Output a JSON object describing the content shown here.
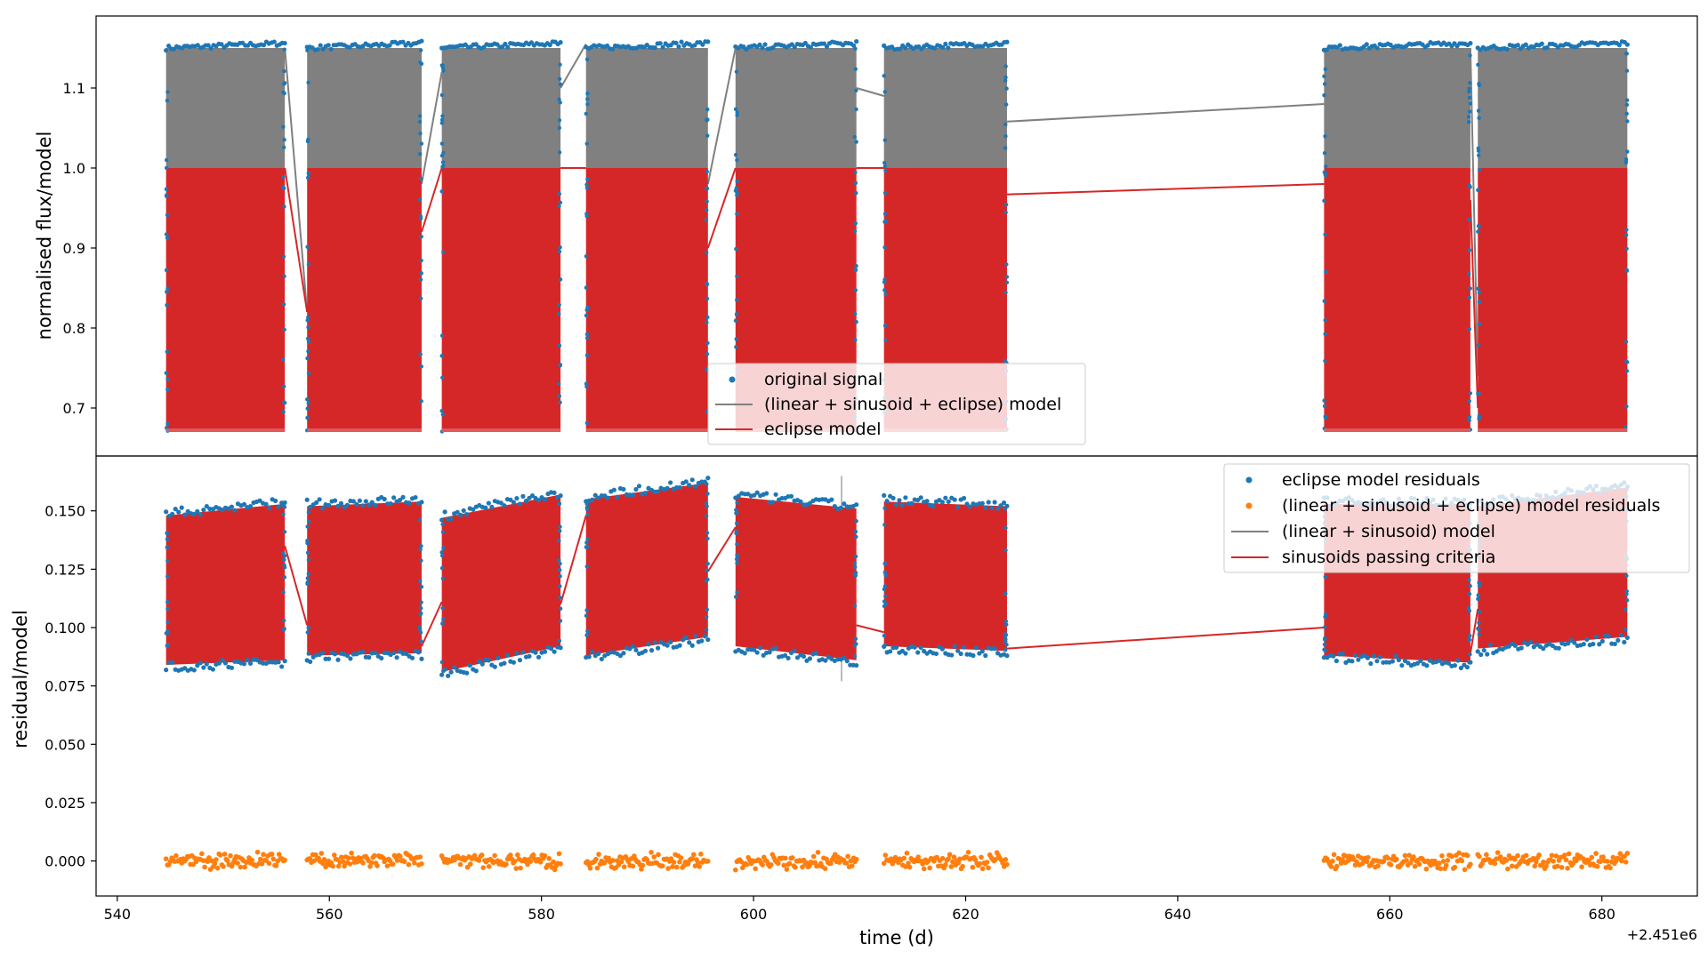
{
  "figure": {
    "x_offset_text": "+2.451e6"
  },
  "colors": {
    "blue": "#1f77b4",
    "orange": "#ff7f0e",
    "gray": "#808080",
    "red": "#d62728"
  },
  "chart_data": [
    {
      "type": "scatter",
      "ylabel": "normalised flux/model",
      "xlim": [
        538.0,
        689.0
      ],
      "ylim": [
        0.64,
        1.19
      ],
      "yticks": [
        0.7,
        0.8,
        0.9,
        1.0,
        1.1
      ],
      "ytick_labels": [
        "0.7",
        "0.8",
        "0.9",
        "1.0",
        "1.1"
      ],
      "grid": false,
      "legend_position": "lower-center",
      "segments": [
        [
          544.6,
          555.8
        ],
        [
          557.9,
          568.7
        ],
        [
          570.6,
          581.8
        ],
        [
          584.2,
          595.7
        ],
        [
          598.3,
          609.7
        ],
        [
          612.3,
          623.9
        ],
        [
          653.8,
          667.6
        ],
        [
          668.3,
          682.4
        ]
      ],
      "series": [
        {
          "name": "original signal",
          "kind": "scatter",
          "color": "blue",
          "y_top": 1.15,
          "y_trend": 0.006,
          "y_bottom": 0.67
        },
        {
          "name": "(linear + sinusoid + eclipse) model",
          "kind": "line",
          "color": "gray",
          "band_top": 1.15,
          "band_bottom": 1.0,
          "connectors": [
            [
              555.8,
              1.15,
              557.9,
              0.82
            ],
            [
              568.7,
              0.98,
              570.6,
              1.12
            ],
            [
              581.8,
              1.1,
              584.2,
              1.155
            ],
            [
              595.7,
              0.98,
              598.3,
              1.15
            ],
            [
              609.7,
              1.1,
              612.3,
              1.09
            ],
            [
              623.9,
              1.058,
              653.8,
              1.08
            ],
            [
              667.6,
              1.15,
              668.3,
              0.74
            ]
          ]
        },
        {
          "name": "eclipse model",
          "kind": "line",
          "color": "red",
          "band_top": 1.0,
          "band_bottom": 0.67,
          "connectors": [
            [
              555.8,
              1.0,
              557.9,
              0.82
            ],
            [
              568.7,
              0.92,
              570.6,
              1.0
            ],
            [
              581.8,
              1.0,
              584.2,
              1.0
            ],
            [
              595.7,
              0.9,
              598.3,
              1.0
            ],
            [
              609.7,
              1.0,
              612.3,
              1.0
            ],
            [
              623.9,
              0.967,
              653.8,
              0.98
            ],
            [
              667.6,
              0.96,
              668.3,
              0.7
            ]
          ]
        }
      ]
    },
    {
      "type": "scatter",
      "xlabel": "time (d)",
      "ylabel": "residual/model",
      "xlim": [
        538.0,
        689.0
      ],
      "ylim": [
        -0.015,
        0.1735
      ],
      "xticks": [
        540,
        560,
        580,
        600,
        620,
        640,
        660,
        680
      ],
      "xtick_labels": [
        "540",
        "560",
        "580",
        "600",
        "620",
        "640",
        "660",
        "680"
      ],
      "yticks": [
        0.0,
        0.025,
        0.05,
        0.075,
        0.1,
        0.125,
        0.15
      ],
      "ytick_labels": [
        "0.000",
        "0.025",
        "0.050",
        "0.075",
        "0.100",
        "0.125",
        "0.150"
      ],
      "grid": false,
      "legend_position": "upper-right",
      "segments": [
        {
          "x0": 544.6,
          "x1": 555.8,
          "top0": 0.148,
          "top1": 0.153,
          "bot0": 0.084,
          "bot1": 0.086
        },
        {
          "x0": 557.9,
          "x1": 568.7,
          "top0": 0.152,
          "top1": 0.154,
          "bot0": 0.088,
          "bot1": 0.089
        },
        {
          "x0": 570.6,
          "x1": 581.8,
          "top0": 0.147,
          "top1": 0.157,
          "bot0": 0.081,
          "bot1": 0.092
        },
        {
          "x0": 584.2,
          "x1": 595.7,
          "top0": 0.155,
          "top1": 0.162,
          "bot0": 0.088,
          "bot1": 0.096
        },
        {
          "x0": 598.3,
          "x1": 609.7,
          "top0": 0.156,
          "top1": 0.151,
          "bot0": 0.092,
          "bot1": 0.086
        },
        {
          "x0": 612.3,
          "x1": 623.9,
          "top0": 0.154,
          "top1": 0.152,
          "bot0": 0.092,
          "bot1": 0.09
        },
        {
          "x0": 653.8,
          "x1": 667.6,
          "top0": 0.153,
          "top1": 0.153,
          "bot0": 0.088,
          "bot1": 0.085
        },
        {
          "x0": 668.3,
          "x1": 682.4,
          "top0": 0.152,
          "top1": 0.16,
          "bot0": 0.091,
          "bot1": 0.096
        }
      ],
      "series": [
        {
          "name": "eclipse model residuals",
          "kind": "scatter",
          "color": "blue"
        },
        {
          "name": "(linear + sinusoid + eclipse) model residuals",
          "kind": "scatter",
          "color": "orange",
          "center": 0.0,
          "spread": 0.004
        },
        {
          "name": "(linear + sinusoid) model",
          "kind": "line",
          "color": "gray",
          "vertical_marker_x": 608.3,
          "vertical_marker_y": [
            0.077,
            0.165
          ]
        },
        {
          "name": "sinusoids passing criteria",
          "kind": "line",
          "color": "red",
          "connectors": [
            [
              555.8,
              0.135,
              557.9,
              0.101
            ],
            [
              568.7,
              0.092,
              570.6,
              0.111
            ],
            [
              581.8,
              0.11,
              584.2,
              0.148
            ],
            [
              595.7,
              0.124,
              598.3,
              0.143
            ],
            [
              609.7,
              0.101,
              612.3,
              0.098
            ],
            [
              623.9,
              0.091,
              653.8,
              0.1
            ],
            [
              667.6,
              0.089,
              668.3,
              0.108
            ]
          ]
        }
      ]
    }
  ]
}
